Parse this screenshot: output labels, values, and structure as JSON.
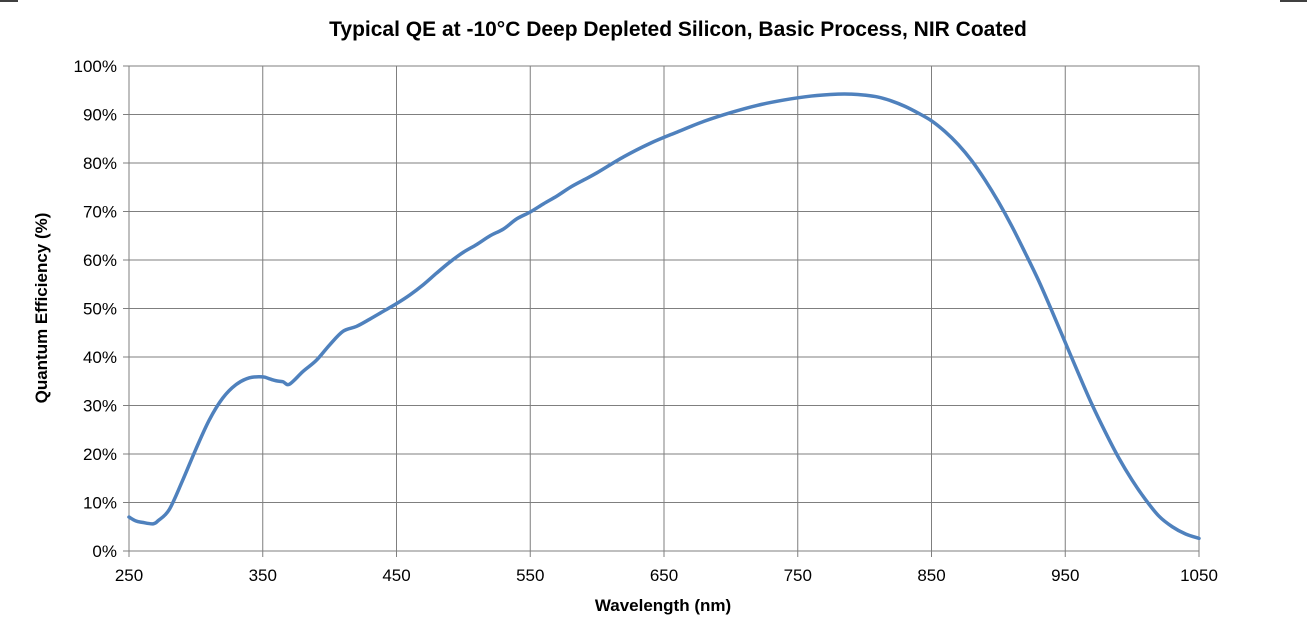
{
  "chart_data": {
    "type": "line",
    "title": "Typical QE at -10°C Deep Depleted Silicon, Basic Process, NIR Coated",
    "xlabel": "Wavelength (nm)",
    "ylabel": "Quantum Efficiency (%)",
    "xlim": [
      250,
      1050
    ],
    "ylim": [
      0,
      100
    ],
    "x_ticks": [
      "250",
      "350",
      "450",
      "550",
      "650",
      "750",
      "850",
      "950",
      "1050"
    ],
    "y_ticks": [
      "0%",
      "10%",
      "20%",
      "30%",
      "40%",
      "50%",
      "60%",
      "70%",
      "80%",
      "90%",
      "100%"
    ],
    "grid": true,
    "legend": "none",
    "series": [
      {
        "color": "#4f81bd",
        "x": [
          250,
          255,
          260,
          268,
          272,
          280,
          290,
          300,
          310,
          320,
          330,
          340,
          350,
          355,
          360,
          365,
          370,
          380,
          390,
          400,
          410,
          420,
          430,
          440,
          450,
          460,
          470,
          480,
          490,
          500,
          510,
          520,
          530,
          540,
          550,
          560,
          570,
          580,
          590,
          600,
          620,
          640,
          660,
          680,
          700,
          720,
          740,
          760,
          780,
          790,
          800,
          810,
          820,
          830,
          840,
          850,
          860,
          870,
          880,
          890,
          900,
          910,
          920,
          930,
          940,
          950,
          960,
          970,
          980,
          990,
          1000,
          1010,
          1020,
          1030,
          1040,
          1050
        ],
        "y": [
          7.0,
          6.2,
          5.9,
          5.6,
          6.3,
          8.5,
          14.5,
          21.0,
          27.0,
          31.5,
          34.3,
          35.7,
          35.9,
          35.5,
          35.1,
          34.9,
          34.4,
          37.0,
          39.3,
          42.5,
          45.3,
          46.3,
          47.8,
          49.4,
          51.0,
          52.8,
          54.9,
          57.3,
          59.6,
          61.6,
          63.2,
          65.0,
          66.4,
          68.5,
          69.9,
          71.6,
          73.2,
          75.0,
          76.5,
          78.0,
          81.3,
          84.1,
          86.4,
          88.6,
          90.4,
          91.9,
          93.0,
          93.8,
          94.2,
          94.2,
          94.0,
          93.6,
          92.8,
          91.7,
          90.3,
          88.7,
          86.5,
          83.8,
          80.5,
          76.5,
          72.0,
          67.0,
          61.5,
          55.8,
          49.5,
          43.0,
          36.5,
          30.2,
          24.5,
          19.2,
          14.6,
          10.6,
          7.2,
          5.0,
          3.5,
          2.6
        ]
      }
    ]
  }
}
